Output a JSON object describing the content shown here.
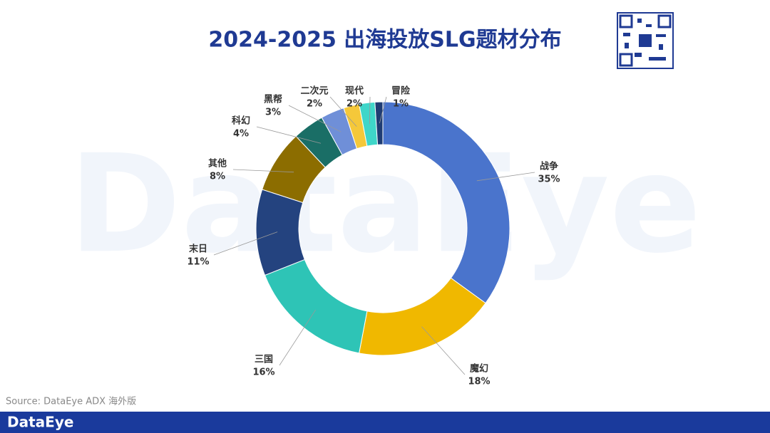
{
  "chart_data": {
    "type": "pie",
    "title": "2024-2025 出海投放SLG题材分布",
    "categories": [
      "战争",
      "魔幻",
      "三国",
      "末日",
      "其他",
      "科幻",
      "黑帮",
      "二次元",
      "现代",
      "冒险"
    ],
    "values": [
      35,
      18,
      16,
      11,
      8,
      4,
      3,
      2,
      2,
      1
    ],
    "value_labels": [
      "35%",
      "18%",
      "16%",
      "11%",
      "8%",
      "4%",
      "3%",
      "2%",
      "2%",
      "1%"
    ],
    "colors": [
      "#4a74cc",
      "#f0b800",
      "#2ec4b6",
      "#24437f",
      "#8c6d00",
      "#1a6e66",
      "#6f8fd8",
      "#f5c83a",
      "#3fd6c9",
      "#1f3c73"
    ],
    "source": "Source: DataEye ADX 海外版",
    "watermark": "DataEye",
    "logo": "DataEye"
  }
}
